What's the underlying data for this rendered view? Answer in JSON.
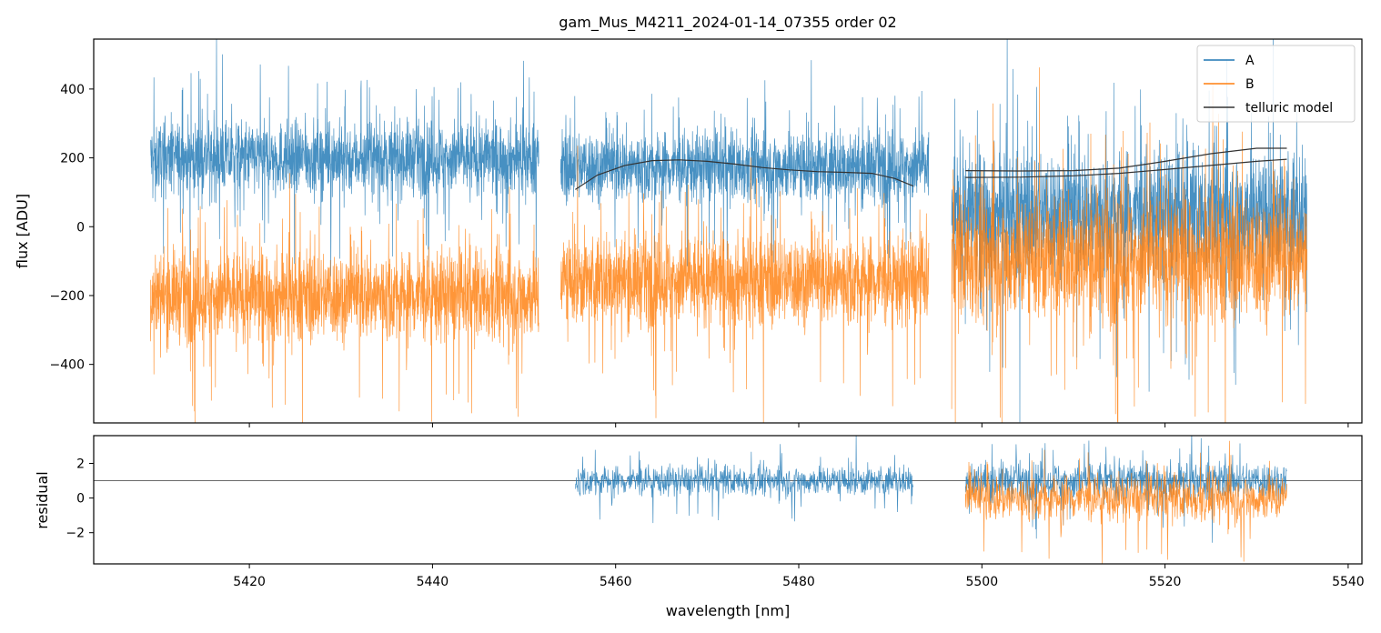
{
  "chart_data": [
    {
      "type": "line",
      "panel": "top",
      "title": "gam_Mus_M4211_2024-01-14_07355  order 02",
      "xlabel": "",
      "ylabel": "flux [ADU]",
      "xlim": [
        5403,
        5541.5
      ],
      "ylim": [
        -570,
        545
      ],
      "xticks": [
        5420,
        5440,
        5460,
        5480,
        5500,
        5520,
        5540
      ],
      "yticks": [
        -400,
        -200,
        0,
        200,
        400
      ],
      "ytick_labels": [
        "−400",
        "−200",
        "0",
        "200",
        "400"
      ],
      "legend": {
        "placement": "top-right",
        "entries": [
          "A",
          "B",
          "telluric model"
        ]
      },
      "series": [
        {
          "name": "A",
          "color": "#1f77b4",
          "style": "noisy",
          "segments": [
            {
              "x": [
                5409.2,
                5451.6
              ],
              "mean": 200,
              "spread": 95
            },
            {
              "x": [
                5454.0,
                5494.2
              ],
              "mean": 175,
              "spread": 95
            },
            {
              "x": [
                5496.7,
                5535.5
              ],
              "mean": 40,
              "spread": 170
            }
          ]
        },
        {
          "name": "B",
          "color": "#ff7f0e",
          "style": "noisy",
          "segments": [
            {
              "x": [
                5409.2,
                5451.6
              ],
              "mean": -200,
              "spread": 120
            },
            {
              "x": [
                5454.0,
                5494.2
              ],
              "mean": -155,
              "spread": 120
            },
            {
              "x": [
                5496.7,
                5535.5
              ],
              "mean": -90,
              "spread": 170
            }
          ]
        },
        {
          "name": "telluric model",
          "color": "#333333",
          "style": "smooth",
          "lines": [
            {
              "x": [
                5455.6,
                5458,
                5461,
                5464,
                5467,
                5470,
                5473,
                5476,
                5479,
                5482,
                5485,
                5488,
                5490.5,
                5492.5
              ],
              "y": [
                108,
                150,
                178,
                192,
                194,
                190,
                182,
                172,
                165,
                160,
                158,
                155,
                140,
                118
              ]
            },
            {
              "x": [
                5498.2,
                5504,
                5510,
                5515,
                5520,
                5525,
                5530,
                5533.3
              ],
              "y": [
                163,
                162,
                163,
                170,
                190,
                212,
                228,
                228
              ]
            },
            {
              "x": [
                5498.2,
                5504,
                5510,
                5515,
                5520,
                5525,
                5530,
                5533.3
              ],
              "y": [
                143,
                144,
                148,
                155,
                166,
                178,
                190,
                196
              ]
            }
          ]
        }
      ]
    },
    {
      "type": "line",
      "panel": "bottom",
      "title": "",
      "xlabel": "wavelength [nm]",
      "ylabel": "residual",
      "xlim": [
        5403,
        5541.5
      ],
      "ylim": [
        -3.8,
        3.6
      ],
      "xticks": [
        5420,
        5440,
        5460,
        5480,
        5500,
        5520,
        5540
      ],
      "yticks": [
        -2,
        0,
        2
      ],
      "ytick_labels": [
        "−2",
        "0",
        "2"
      ],
      "reference_line": 1,
      "series": [
        {
          "name": "A",
          "color": "#1f77b4",
          "style": "noisy",
          "segments": [
            {
              "x": [
                5455.6,
                5492.5
              ],
              "mean": 1.0,
              "spread": 0.8
            },
            {
              "x": [
                5498.2,
                5533.3
              ],
              "mean": 1.0,
              "spread": 1.0
            }
          ]
        },
        {
          "name": "B",
          "color": "#ff7f0e",
          "style": "noisy",
          "segments": [
            {
              "x": [
                5498.2,
                5533.3
              ],
              "mean": 0.0,
              "spread": 1.25
            }
          ]
        }
      ]
    }
  ]
}
